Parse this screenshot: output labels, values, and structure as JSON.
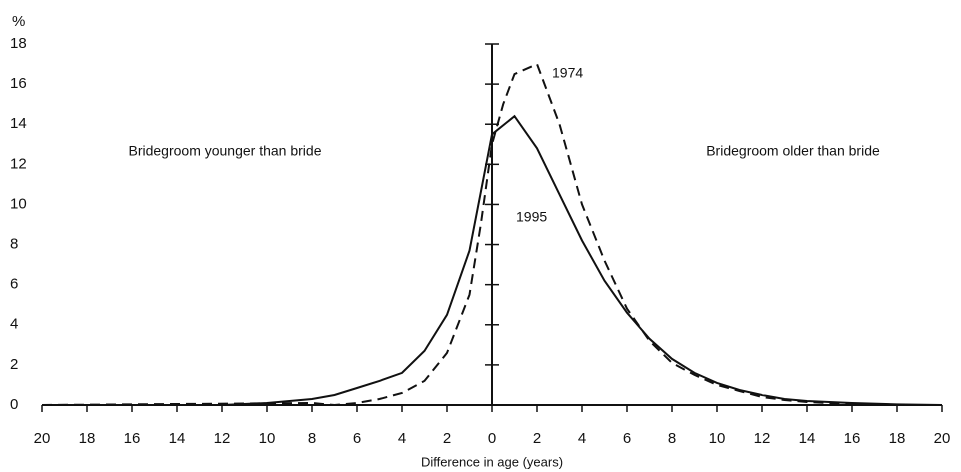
{
  "chart_data": {
    "type": "line",
    "ylabel": "%",
    "xlabel": "Difference in age (years)",
    "annotations": [
      "Bridegroom younger than bride",
      "Bridegroom older than bride",
      "1974",
      "1995"
    ],
    "xlim": [
      -20,
      20
    ],
    "xticks": [
      {
        "value": -20,
        "label": "20"
      },
      {
        "value": -18,
        "label": "18"
      },
      {
        "value": -16,
        "label": "16"
      },
      {
        "value": -14,
        "label": "14"
      },
      {
        "value": -12,
        "label": "12"
      },
      {
        "value": -10,
        "label": "10"
      },
      {
        "value": -8,
        "label": "8"
      },
      {
        "value": -6,
        "label": "6"
      },
      {
        "value": -4,
        "label": "4"
      },
      {
        "value": -2,
        "label": "2"
      },
      0,
      2,
      4,
      6,
      8,
      10,
      12,
      14,
      16,
      18,
      20
    ],
    "ylim": [
      0,
      18
    ],
    "yticks": [
      0,
      2,
      4,
      6,
      8,
      10,
      12,
      14,
      16,
      18
    ],
    "series": [
      {
        "name": "1995",
        "color": "#111111",
        "style": "solid",
        "x": [
          -20,
          -12,
          -10,
          -8,
          -7,
          -6,
          -5,
          -4,
          -3,
          -2,
          -1,
          0,
          1,
          2,
          3,
          4,
          5,
          6,
          7,
          8,
          9,
          10,
          11,
          12,
          13,
          14,
          16,
          18,
          20
        ],
        "values": [
          0,
          0,
          0.1,
          0.3,
          0.5,
          0.85,
          1.2,
          1.6,
          2.7,
          4.5,
          7.7,
          13.5,
          14.4,
          12.8,
          10.5,
          8.2,
          6.2,
          4.6,
          3.3,
          2.3,
          1.6,
          1.1,
          0.75,
          0.5,
          0.3,
          0.2,
          0.1,
          0.03,
          0
        ]
      },
      {
        "name": "1974",
        "color": "#111111",
        "style": "dashed",
        "x": [
          -20,
          -8,
          -7,
          -6,
          -5,
          -4,
          -3,
          -2,
          -1,
          -0.5,
          0,
          0.5,
          1,
          2,
          3,
          4,
          5,
          6,
          7,
          8,
          9,
          10,
          11,
          12,
          13,
          14,
          16,
          18,
          20
        ],
        "values": [
          0,
          0.1,
          0,
          0.1,
          0.3,
          0.6,
          1.2,
          2.6,
          5.5,
          9,
          13,
          15,
          16.5,
          17,
          14,
          10,
          7.2,
          4.8,
          3.2,
          2.1,
          1.5,
          1.0,
          0.7,
          0.4,
          0.25,
          0.15,
          0.05,
          0,
          0
        ]
      }
    ]
  }
}
